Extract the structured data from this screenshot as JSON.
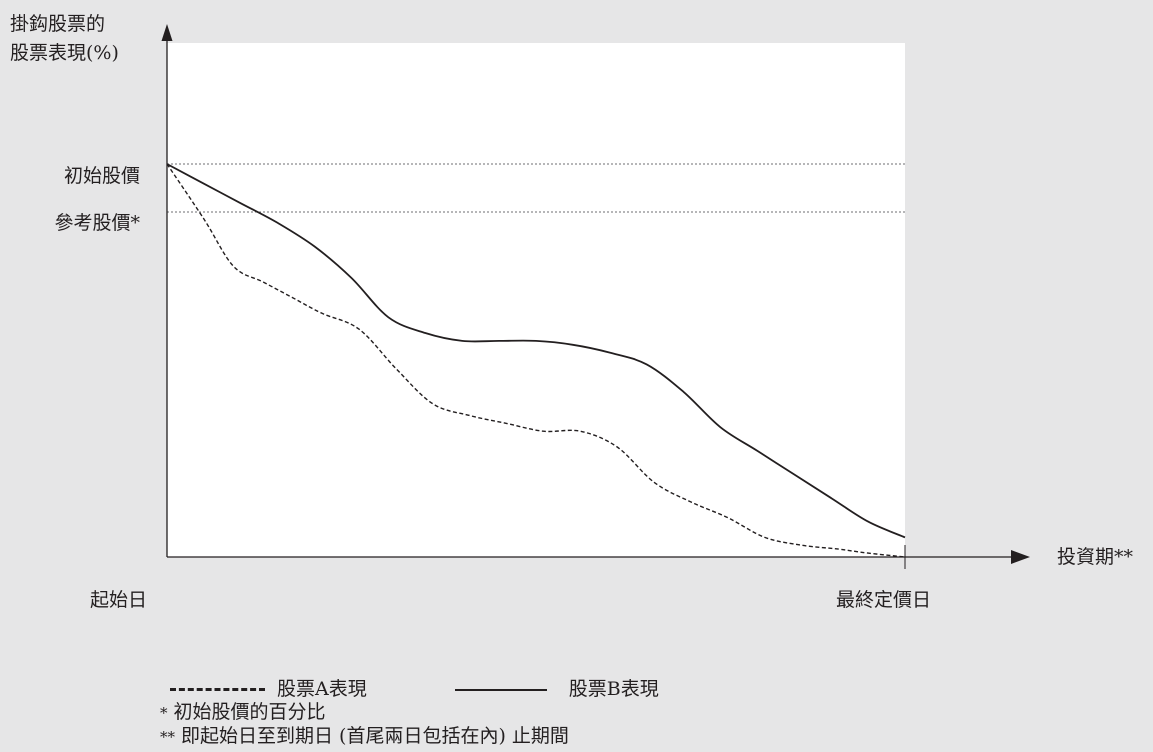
{
  "chart_data": {
    "type": "line",
    "ylabel_line1": "掛鈎股票的",
    "ylabel_line2": "股票表現(%)",
    "xlabel": "投資期**",
    "x_start_label": "起始日",
    "x_end_label": "最終定價日",
    "reference_lines": [
      {
        "label": "初始股價",
        "value": 100
      },
      {
        "label": "參考股價*",
        "value": 88
      }
    ],
    "ylim": [
      0,
      100
    ],
    "xlim": [
      0,
      100
    ],
    "series": [
      {
        "name": "股票A表現",
        "style": "dashed",
        "x": [
          0,
          5,
          9,
          13,
          17,
          21,
          26,
          31,
          36,
          41,
          46,
          51,
          56,
          61,
          66,
          71,
          76,
          81,
          86,
          91,
          95,
          100
        ],
        "y": [
          100,
          86,
          74,
          70,
          66,
          62,
          58,
          48,
          39,
          36,
          34,
          32,
          32,
          28,
          19,
          14,
          10,
          5,
          3,
          2,
          1,
          0
        ]
      },
      {
        "name": "股票B表現",
        "style": "solid",
        "x": [
          0,
          5,
          10,
          15,
          20,
          25,
          30,
          35,
          40,
          45,
          50,
          55,
          60,
          65,
          70,
          75,
          80,
          85,
          90,
          95,
          100
        ],
        "y": [
          100,
          95,
          90,
          85,
          79,
          71,
          61,
          57,
          55,
          55,
          55,
          54,
          52,
          49,
          42,
          33,
          27,
          21,
          15,
          9,
          5
        ]
      }
    ]
  },
  "notes": {
    "legend_a": "股票A表現",
    "legend_b": "股票B表現",
    "footnote1_mark": "*",
    "footnote1": "初始股價的百分比",
    "footnote2_mark": "**",
    "footnote2": "即起始日至到期日 (首尾兩日包括在內) 止期間"
  },
  "colors": {
    "background": "#e6e6e7",
    "plot_area": "#ffffff",
    "ink": "#231f20",
    "reference_line": "#6d6e71"
  }
}
